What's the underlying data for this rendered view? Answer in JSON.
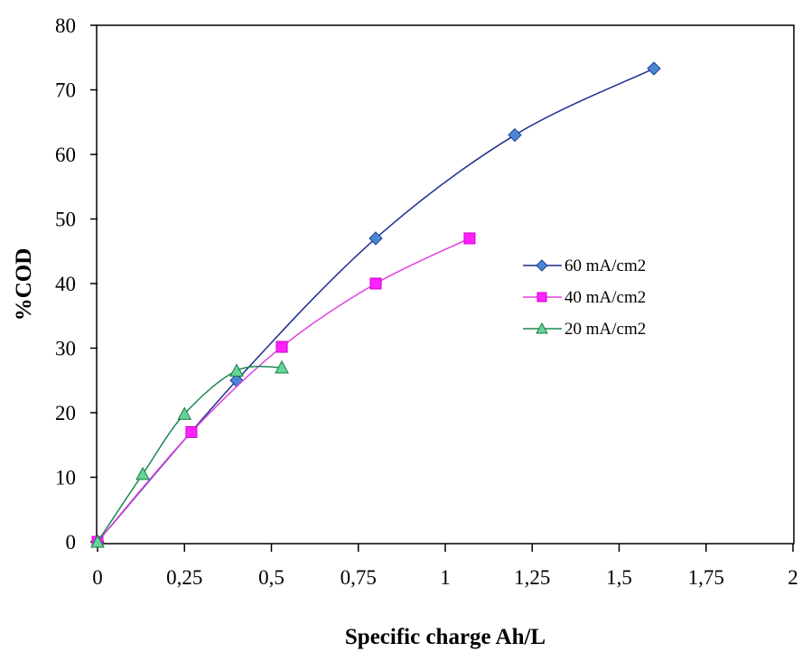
{
  "chart_data": {
    "type": "line",
    "xlabel": "Specific charge Ah/L",
    "ylabel": "%COD",
    "xlim": [
      0,
      2
    ],
    "ylim": [
      0,
      80
    ],
    "x_ticks": [
      0,
      0.25,
      0.5,
      0.75,
      1,
      1.25,
      1.5,
      1.75,
      2
    ],
    "x_tick_labels": [
      "0",
      "0,25",
      "0,5",
      "0,75",
      "1",
      "1,25",
      "1,5",
      "1,75",
      "2"
    ],
    "y_ticks": [
      0,
      10,
      20,
      30,
      40,
      50,
      60,
      70,
      80
    ],
    "y_tick_labels": [
      "0",
      "10",
      "20",
      "30",
      "40",
      "50",
      "60",
      "70",
      "80"
    ],
    "grid": false,
    "legend_position": "right",
    "series": [
      {
        "name": "60 mA/cm2",
        "line_color": "#1f2f8f",
        "marker_color": "#4a86d4",
        "marker": "diamond",
        "points": [
          [
            0,
            0
          ],
          [
            0.4,
            25
          ],
          [
            0.8,
            47
          ],
          [
            1.2,
            63
          ],
          [
            1.6,
            73.3
          ]
        ]
      },
      {
        "name": "40 mA/cm2",
        "line_color": "#e040e0",
        "marker_color": "#ff22ff",
        "marker": "square",
        "points": [
          [
            0,
            0
          ],
          [
            0.27,
            17
          ],
          [
            0.53,
            30.2
          ],
          [
            0.8,
            40
          ],
          [
            1.07,
            47
          ]
        ]
      },
      {
        "name": "20 mA/cm2",
        "line_color": "#1a8a50",
        "marker_color": "#66d49a",
        "marker": "triangle",
        "points": [
          [
            0,
            0
          ],
          [
            0.13,
            10.5
          ],
          [
            0.25,
            19.8
          ],
          [
            0.4,
            26.5
          ],
          [
            0.53,
            27
          ]
        ]
      }
    ]
  }
}
